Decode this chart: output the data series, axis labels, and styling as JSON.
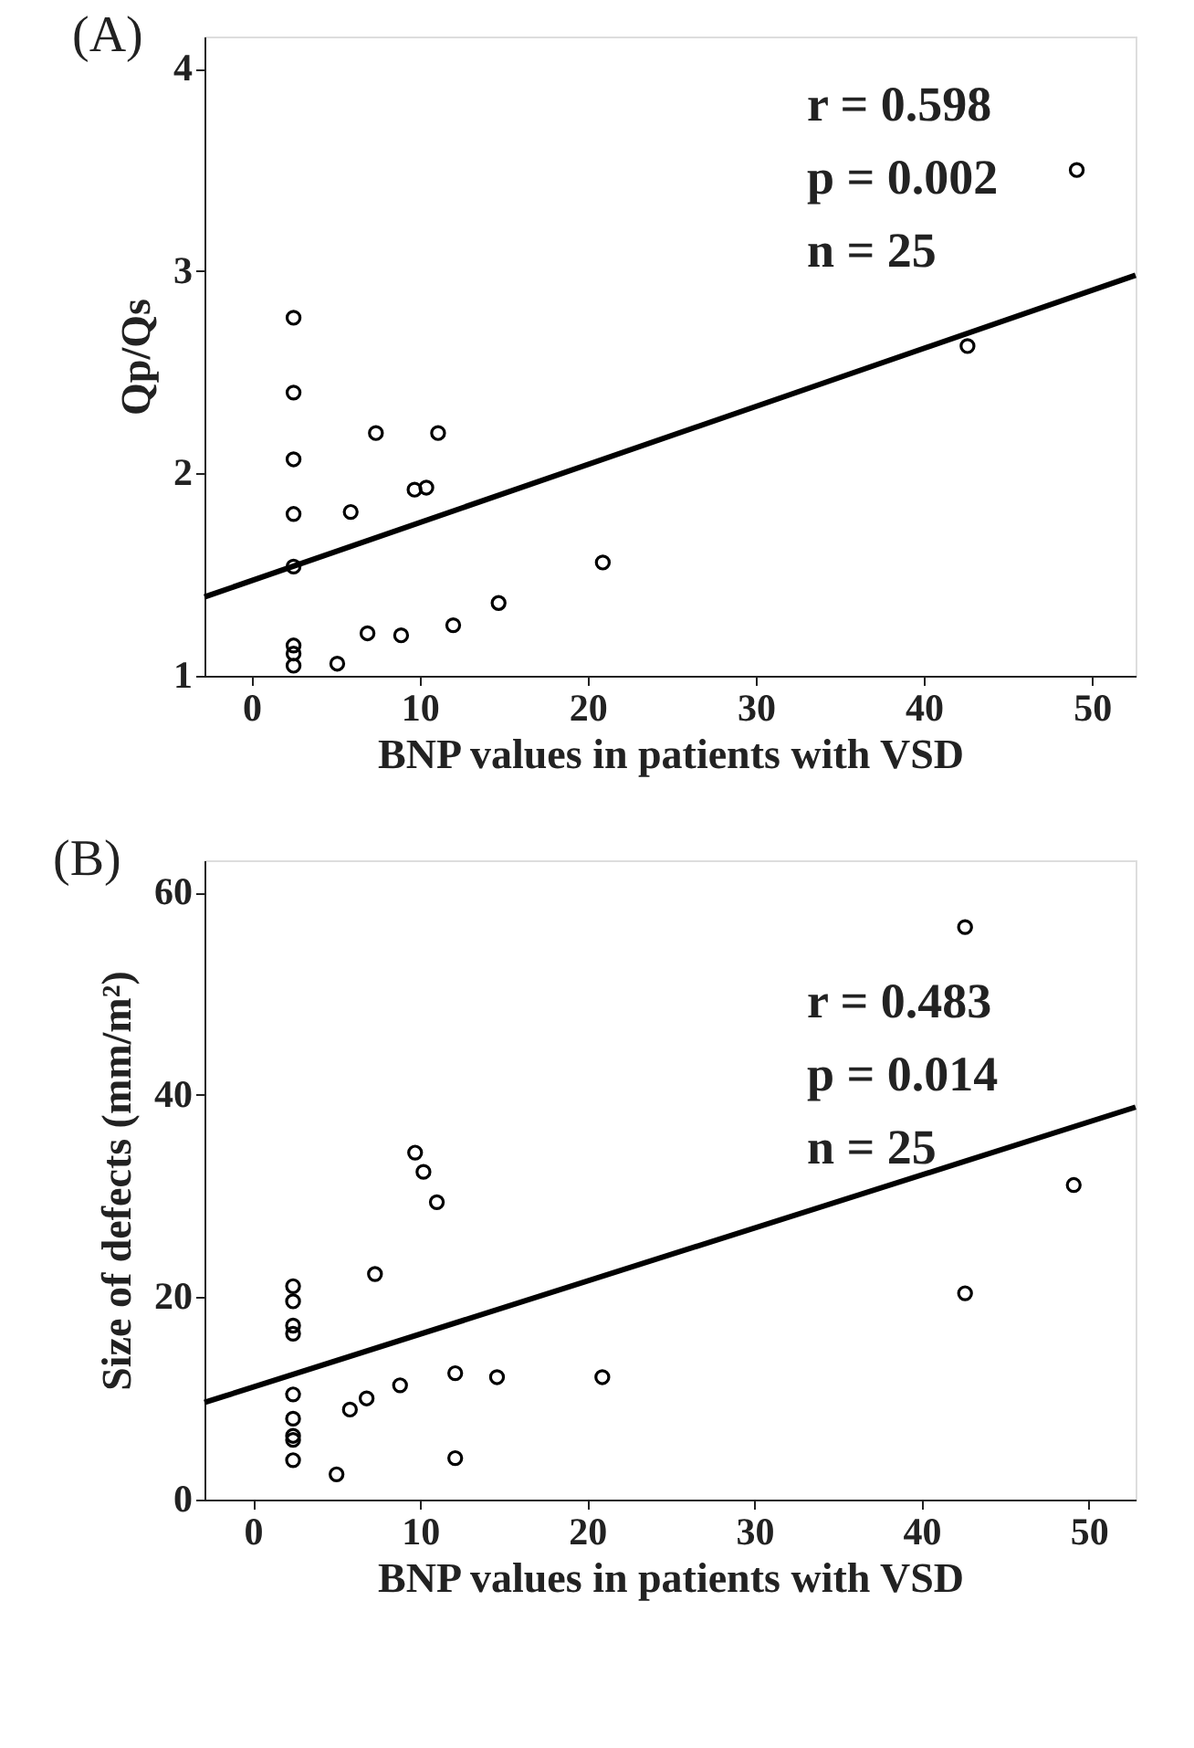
{
  "chart_data": [
    {
      "type": "scatter",
      "title": "(A)",
      "xlabel": "BNP values in patients with VSD",
      "ylabel": "Qp/Qs",
      "xlim": [
        -2.8,
        52.6
      ],
      "ylim": [
        1,
        4.16
      ],
      "xticks": [
        0,
        10,
        20,
        30,
        40,
        50
      ],
      "yticks": [
        1,
        2,
        3,
        4
      ],
      "grid": false,
      "series": [
        {
          "marker": "circle",
          "color": "#000000",
          "x": [
            2.5,
            2.5,
            2.5,
            2.5,
            2.5,
            2.5,
            2.5,
            2.5,
            5.1,
            5.9,
            6.9,
            7.4,
            8.9,
            9.7,
            10.4,
            11.1,
            12.0,
            14.7,
            20.9,
            42.6,
            49.1
          ],
          "values": [
            2.77,
            2.4,
            2.07,
            1.8,
            1.54,
            1.15,
            1.11,
            1.05,
            1.06,
            1.81,
            1.21,
            2.2,
            1.2,
            1.92,
            1.93,
            2.2,
            1.25,
            1.36,
            1.56,
            2.63,
            3.5
          ]
        },
        {
          "type": "line",
          "marker": "none",
          "line_style": "solid",
          "color": "#000000",
          "x": [
            -2.8,
            52.6
          ],
          "values": [
            1.39,
            2.98
          ]
        }
      ],
      "annotations": [
        "r = 0.598",
        "p = 0.002",
        "n = 25"
      ]
    },
    {
      "type": "scatter",
      "title": "(B)",
      "xlabel": "BNP values in patients with VSD",
      "ylabel": "Size of defects (mm/m²)",
      "xlim": [
        -2.9,
        52.8
      ],
      "ylim": [
        0,
        63.2
      ],
      "xticks": [
        0,
        10,
        20,
        30,
        40,
        50
      ],
      "yticks": [
        0,
        20,
        40,
        60
      ],
      "grid": false,
      "series": [
        {
          "marker": "circle",
          "color": "#000000",
          "x": [
            2.4,
            2.4,
            2.4,
            2.4,
            2.4,
            2.4,
            2.4,
            2.4,
            2.4,
            5.0,
            5.8,
            6.8,
            7.3,
            8.8,
            9.7,
            10.2,
            11.0,
            12.1,
            12.1,
            14.6,
            20.9,
            42.6,
            42.6,
            49.1
          ],
          "values": [
            21.1,
            19.6,
            17.2,
            16.4,
            10.4,
            8.0,
            6.3,
            5.9,
            3.9,
            2.5,
            8.9,
            10.0,
            22.3,
            11.3,
            34.3,
            32.4,
            29.4,
            12.5,
            4.1,
            12.1,
            12.1,
            56.6,
            20.4,
            31.1
          ]
        },
        {
          "type": "line",
          "marker": "none",
          "line_style": "solid",
          "color": "#000000",
          "x": [
            -2.9,
            52.8
          ],
          "values": [
            9.6,
            38.8
          ]
        }
      ],
      "annotations": [
        "r = 0.483",
        "p = 0.014",
        "n = 25"
      ]
    }
  ]
}
